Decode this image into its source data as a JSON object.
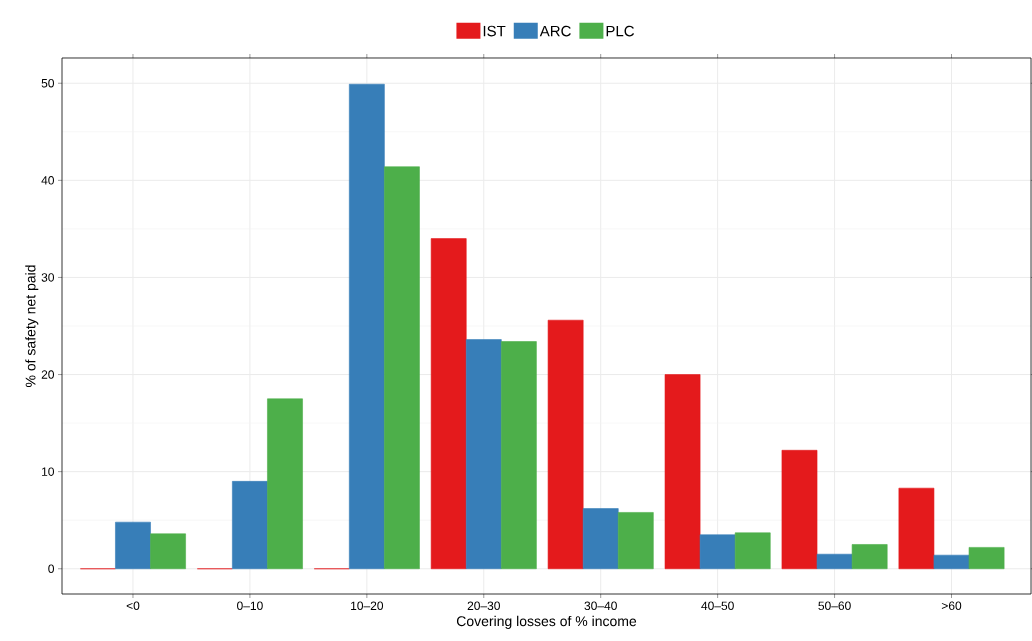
{
  "chart_data": {
    "type": "bar",
    "xlabel": "Covering losses of % income",
    "ylabel": "% of safety net paid",
    "categories": [
      "<0",
      "0–10",
      "10–20",
      "20–30",
      "30–40",
      "40–50",
      "50–60",
      ">60"
    ],
    "series": [
      {
        "name": "IST",
        "color": "#e41a1c",
        "values": [
          0,
          0,
          0,
          34.0,
          25.6,
          20.0,
          12.2,
          8.3
        ]
      },
      {
        "name": "ARC",
        "color": "#377eb8",
        "values": [
          4.8,
          9.0,
          49.9,
          23.6,
          6.2,
          3.5,
          1.5,
          1.4
        ]
      },
      {
        "name": "PLC",
        "color": "#4daf4a",
        "values": [
          3.6,
          17.5,
          41.4,
          23.4,
          5.8,
          3.7,
          2.5,
          2.2
        ]
      }
    ],
    "ylim": [
      -2.6,
      52.6
    ],
    "yticks": [
      0,
      10,
      20,
      30,
      40,
      50
    ],
    "grid": true,
    "legend": "top"
  }
}
